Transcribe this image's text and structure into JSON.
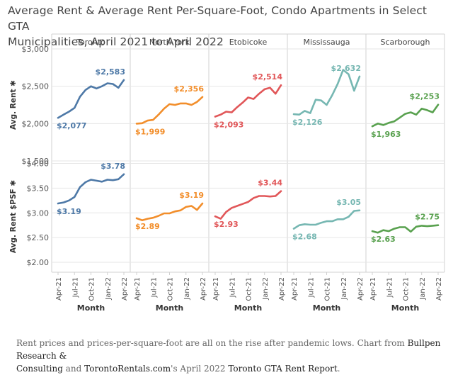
{
  "title": {
    "line1": "Average Rent & Average Rent Per-Square-Foot, Condo Apartments in Select GTA",
    "line2": "Municipalities, April 2021 to April 2022"
  },
  "caption": {
    "part1": "Rent prices and prices-per-square-foot are all on the rise after pandemic lows. Chart from ",
    "source1": "Bullpen Research &",
    "source1b": "Consulting",
    "part2": " and ",
    "source2": "TorontoRentals.com",
    "part3": "'s April 2022 ",
    "report": "Toronto GTA Rent Report",
    "part4": "."
  },
  "chart_data": {
    "type": "line",
    "panels": [
      "Toronto",
      "North York",
      "Etobicoke",
      "Mississauga",
      "Scarborough"
    ],
    "colors": {
      "Toronto": "#4e79a7",
      "North York": "#f28e2b",
      "Etobicoke": "#e15759",
      "Mississauga": "#76b7b2",
      "Scarborough": "#59a14f"
    },
    "x": [
      "Apr-21",
      "May-21",
      "Jun-21",
      "Jul-21",
      "Aug-21",
      "Sep-21",
      "Oct-21",
      "Nov-21",
      "Dec-21",
      "Jan-22",
      "Feb-22",
      "Mar-22",
      "Apr-22"
    ],
    "x_tick_labels": [
      "Apr-21",
      "Jul-21",
      "Oct-21",
      "Jan-22",
      "Apr-22"
    ],
    "xlabel": "Month",
    "rows": [
      {
        "ylabel": "Avg. Rent ✱",
        "ylim": [
          1500,
          3000
        ],
        "yticks": [
          "$1,500",
          "$2,000",
          "$2,500",
          "$3,000"
        ],
        "ytick_values": [
          1500,
          2000,
          2500,
          3000
        ],
        "series": [
          {
            "name": "Toronto",
            "values": [
              2077,
              2120,
              2160,
              2210,
              2360,
              2450,
              2500,
              2470,
              2500,
              2540,
              2530,
              2480,
              2583
            ],
            "start_label": "$2,077",
            "end_label": "$2,583"
          },
          {
            "name": "North York",
            "values": [
              1999,
              2005,
              2040,
              2050,
              2120,
              2200,
              2260,
              2250,
              2270,
              2270,
              2250,
              2290,
              2356
            ],
            "start_label": "$1,999",
            "end_label": "$2,356"
          },
          {
            "name": "Etobicoke",
            "values": [
              2093,
              2120,
              2160,
              2150,
              2220,
              2280,
              2350,
              2330,
              2400,
              2460,
              2480,
              2400,
              2514
            ],
            "start_label": "$2,093",
            "end_label": "$2,514"
          },
          {
            "name": "Mississauga",
            "values": [
              2126,
              2120,
              2170,
              2140,
              2320,
              2310,
              2250,
              2380,
              2530,
              2720,
              2660,
              2440,
              2632
            ],
            "start_label": "$2,126",
            "end_label": "$2,632"
          },
          {
            "name": "Scarborough",
            "values": [
              1963,
              2000,
              1980,
              2010,
              2030,
              2080,
              2130,
              2150,
              2120,
              2200,
              2180,
              2150,
              2253
            ],
            "start_label": "$1,963",
            "end_label": "$2,253"
          }
        ]
      },
      {
        "ylabel": "Avg. Rent $PSF ✱",
        "ylim": [
          1.8,
          4.05
        ],
        "yticks": [
          "$2.00",
          "$2.50",
          "$3.00",
          "$3.50",
          "$4.00"
        ],
        "ytick_values": [
          2.0,
          2.5,
          3.0,
          3.5,
          4.0
        ],
        "series": [
          {
            "name": "Toronto",
            "values": [
              3.19,
              3.21,
              3.25,
              3.32,
              3.52,
              3.62,
              3.67,
              3.65,
              3.63,
              3.67,
              3.66,
              3.68,
              3.78
            ],
            "start_label": "$3.19",
            "end_label": "$3.78"
          },
          {
            "name": "North York",
            "values": [
              2.89,
              2.85,
              2.88,
              2.9,
              2.94,
              2.99,
              2.99,
              3.03,
              3.05,
              3.12,
              3.14,
              3.06,
              3.19
            ],
            "start_label": "$2.89",
            "end_label": "$3.19"
          },
          {
            "name": "Etobicoke",
            "values": [
              2.93,
              2.88,
              3.02,
              3.1,
              3.14,
              3.18,
              3.22,
              3.3,
              3.34,
              3.34,
              3.33,
              3.34,
              3.44
            ],
            "start_label": "$2.93",
            "end_label": "$3.44"
          },
          {
            "name": "Mississauga",
            "values": [
              2.68,
              2.75,
              2.77,
              2.76,
              2.76,
              2.8,
              2.83,
              2.83,
              2.87,
              2.87,
              2.92,
              3.04,
              3.05
            ],
            "start_label": "$2.68",
            "end_label": "$3.05"
          },
          {
            "name": "Scarborough",
            "values": [
              2.63,
              2.6,
              2.65,
              2.63,
              2.68,
              2.71,
              2.71,
              2.62,
              2.72,
              2.74,
              2.73,
              2.74,
              2.75
            ],
            "start_label": "$2.63",
            "end_label": "$2.75"
          }
        ]
      }
    ]
  }
}
